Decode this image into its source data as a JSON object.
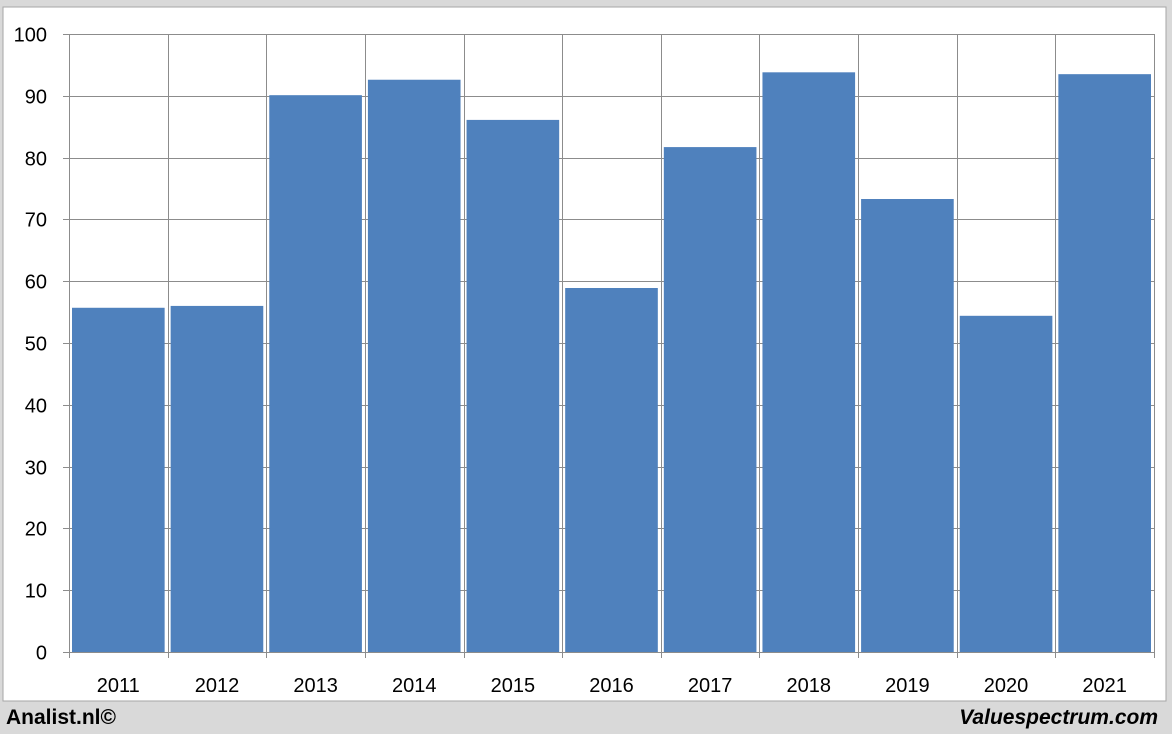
{
  "chart_data": {
    "type": "bar",
    "categories": [
      "2011",
      "2012",
      "2013",
      "2014",
      "2015",
      "2016",
      "2017",
      "2018",
      "2019",
      "2020",
      "2021"
    ],
    "values": [
      55.7,
      56.0,
      90.1,
      92.6,
      86.1,
      58.9,
      81.7,
      93.8,
      73.3,
      54.4,
      93.5
    ],
    "title": "",
    "xlabel": "",
    "ylabel": "",
    "ylim": [
      0,
      100
    ],
    "yticks": [
      "0",
      "10",
      "20",
      "30",
      "40",
      "50",
      "60",
      "70",
      "80",
      "90",
      "100"
    ],
    "grid": true,
    "bar_color": "#4f81bd"
  },
  "footer": {
    "left": "Analist.nl©",
    "right": "Valuespectrum.com"
  }
}
